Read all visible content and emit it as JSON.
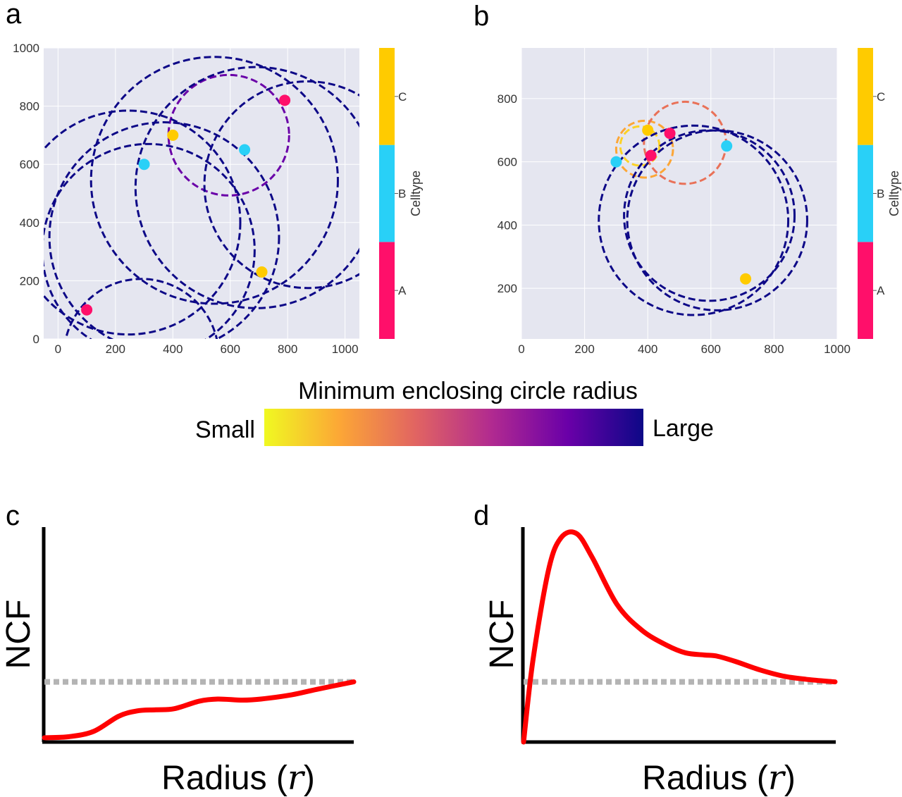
{
  "panels": {
    "a": {
      "letter": "a"
    },
    "b": {
      "letter": "b"
    },
    "c": {
      "letter": "c"
    },
    "d": {
      "letter": "d"
    }
  },
  "colorbar_gradient": {
    "title": "Minimum enclosing circle radius",
    "low_label": "Small",
    "high_label": "Large",
    "stops": [
      "#f0f921",
      "#fca636",
      "#e16462",
      "#b12a90",
      "#6a00a8",
      "#0d0887"
    ]
  },
  "celltype_colorbar": {
    "title": "Celltype",
    "categories": [
      "A",
      "B",
      "C"
    ],
    "colors": {
      "A": "#ff0f6a",
      "B": "#29d0f7",
      "C": "#ffcb00"
    }
  },
  "chart_data": [
    {
      "type": "scatter",
      "panel": "a",
      "xlim": [
        -50,
        1050
      ],
      "ylim": [
        0,
        1000
      ],
      "xticks": [
        0,
        200,
        400,
        600,
        800,
        1000
      ],
      "yticks": [
        0,
        200,
        400,
        600,
        800,
        1000
      ],
      "grid": true,
      "points": [
        {
          "x": 100,
          "y": 100,
          "celltype": "A"
        },
        {
          "x": 300,
          "y": 600,
          "celltype": "B"
        },
        {
          "x": 400,
          "y": 700,
          "celltype": "C"
        },
        {
          "x": 650,
          "y": 650,
          "celltype": "B"
        },
        {
          "x": 790,
          "y": 820,
          "celltype": "A"
        },
        {
          "x": 710,
          "y": 230,
          "celltype": "C"
        }
      ],
      "circles": [
        {
          "cx": 595,
          "cy": 700,
          "r": 210,
          "color": "#6a00a8"
        },
        {
          "cx": 545,
          "cy": 545,
          "r": 430,
          "color": "#0d0887"
        },
        {
          "cx": 690,
          "cy": 520,
          "r": 420,
          "color": "#0d0887"
        },
        {
          "cx": 870,
          "cy": 530,
          "r": 360,
          "color": "#0d0887"
        },
        {
          "cx": 370,
          "cy": 350,
          "r": 400,
          "color": "#0d0887"
        },
        {
          "cx": 245,
          "cy": 400,
          "r": 390,
          "color": "#0d0887"
        },
        {
          "cx": 315,
          "cy": 305,
          "r": 370,
          "color": "#0d0887"
        },
        {
          "cx": 290,
          "cy": -60,
          "r": 270,
          "color": "#0d0887"
        }
      ]
    },
    {
      "type": "scatter",
      "panel": "b",
      "xlim": [
        0,
        1000
      ],
      "ylim": [
        40,
        960
      ],
      "xticks": [
        0,
        200,
        400,
        600,
        800,
        1000
      ],
      "yticks": [
        200,
        400,
        600,
        800
      ],
      "grid": true,
      "points": [
        {
          "x": 300,
          "y": 600,
          "celltype": "B"
        },
        {
          "x": 400,
          "y": 700,
          "celltype": "C"
        },
        {
          "x": 410,
          "y": 620,
          "celltype": "A"
        },
        {
          "x": 470,
          "y": 690,
          "celltype": "A"
        },
        {
          "x": 650,
          "y": 650,
          "celltype": "B"
        },
        {
          "x": 710,
          "y": 230,
          "celltype": "C"
        }
      ],
      "circles": [
        {
          "cx": 375,
          "cy": 650,
          "r": 62,
          "color": "#fcd225"
        },
        {
          "cx": 390,
          "cy": 640,
          "r": 90,
          "color": "#fca636"
        },
        {
          "cx": 518,
          "cy": 660,
          "r": 130,
          "color": "#e97158"
        },
        {
          "cx": 545,
          "cy": 415,
          "r": 300,
          "color": "#0d0887"
        },
        {
          "cx": 620,
          "cy": 415,
          "r": 285,
          "color": "#0d0887"
        },
        {
          "cx": 595,
          "cy": 430,
          "r": 270,
          "color": "#0d0887"
        }
      ]
    },
    {
      "type": "line",
      "panel": "c",
      "xlabel": "Radius (r)",
      "ylabel": "NCF",
      "reference_level": 0.28,
      "x": [
        0,
        0.08,
        0.16,
        0.24,
        0.3,
        0.36,
        0.42,
        0.5,
        0.56,
        0.64,
        0.7,
        0.8,
        0.88,
        1.0
      ],
      "values": [
        0.02,
        0.025,
        0.05,
        0.12,
        0.145,
        0.15,
        0.155,
        0.19,
        0.2,
        0.195,
        0.2,
        0.22,
        0.245,
        0.28
      ]
    },
    {
      "type": "line",
      "panel": "d",
      "xlabel": "Radius (r)",
      "ylabel": "NCF",
      "reference_level": 0.28,
      "x": [
        0,
        0.03,
        0.08,
        0.12,
        0.17,
        0.22,
        0.3,
        0.38,
        0.46,
        0.52,
        0.58,
        0.62,
        0.68,
        0.76,
        0.84,
        0.92,
        1.0
      ],
      "values": [
        0,
        0.38,
        0.8,
        0.95,
        0.97,
        0.86,
        0.64,
        0.52,
        0.45,
        0.415,
        0.405,
        0.4,
        0.375,
        0.335,
        0.305,
        0.29,
        0.28
      ]
    }
  ]
}
